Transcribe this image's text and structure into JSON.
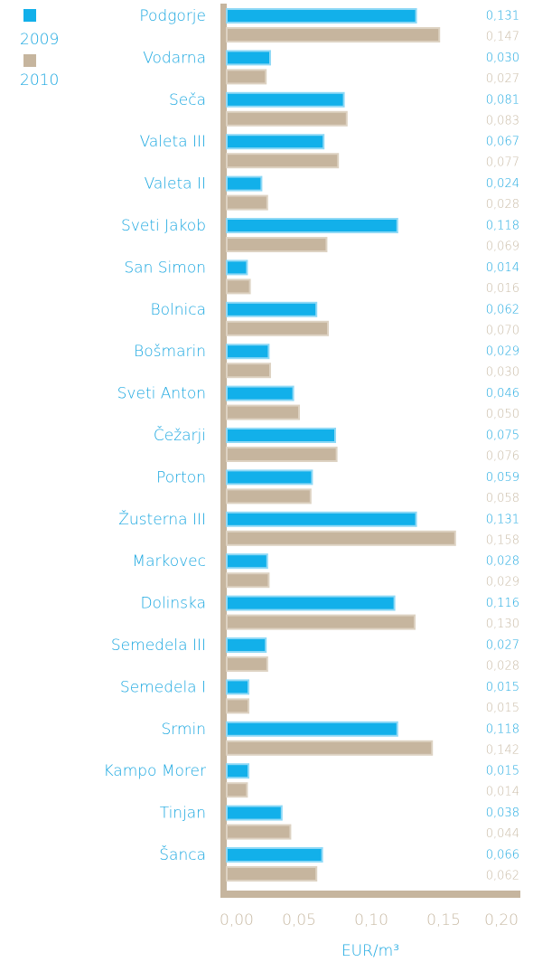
{
  "chart_data": {
    "type": "bar",
    "orientation": "horizontal",
    "categories": [
      "Podgorje",
      "Vodarna",
      "Seča",
      "Valeta III",
      "Valeta II",
      "Sveti Jakob",
      "San Simon",
      "Bolnica",
      "Bošmarin",
      "Sveti Anton",
      "Čežarji",
      "Porton",
      "Žusterna III",
      "Markovec",
      "Dolinska",
      "Semedela III",
      "Semedela I",
      "Srmin",
      "Kampo Morer",
      "Tinjan",
      "Šanca"
    ],
    "series": [
      {
        "name": "2009",
        "color": "#12b0ea",
        "values": [
          0.131,
          0.03,
          0.081,
          0.067,
          0.024,
          0.118,
          0.014,
          0.062,
          0.029,
          0.046,
          0.075,
          0.059,
          0.131,
          0.028,
          0.116,
          0.027,
          0.015,
          0.118,
          0.015,
          0.038,
          0.066
        ],
        "value_labels": [
          "0,131",
          "0,030",
          "0,081",
          "0,067",
          "0,024",
          "0,118",
          "0,014",
          "0,062",
          "0,029",
          "0,046",
          "0,075",
          "0,059",
          "0,131",
          "0,028",
          "0,116",
          "0,027",
          "0,015",
          "0,118",
          "0,015",
          "0,038",
          "0,066"
        ]
      },
      {
        "name": "2010",
        "color": "#c6b59e",
        "values": [
          0.147,
          0.027,
          0.083,
          0.077,
          0.028,
          0.069,
          0.016,
          0.07,
          0.03,
          0.05,
          0.076,
          0.058,
          0.158,
          0.029,
          0.13,
          0.028,
          0.015,
          0.142,
          0.014,
          0.044,
          0.062
        ],
        "value_labels": [
          "0,147",
          "0,027",
          "0,083",
          "0,077",
          "0,028",
          "0,069",
          "0,016",
          "0,070",
          "0,030",
          "0,050",
          "0,076",
          "0,058",
          "0,158",
          "0,029",
          "0,130",
          "0,028",
          "0,015",
          "0,142",
          "0,014",
          "0,044",
          "0,062"
        ]
      }
    ],
    "xlabel": "EUR/m³",
    "xlim": [
      0,
      0.2
    ],
    "xticks": [
      {
        "value": 0,
        "label": "0,00"
      },
      {
        "value": 0.05,
        "label": "0,05"
      },
      {
        "value": 0.1,
        "label": "0,10"
      },
      {
        "value": 0.15,
        "label": "0,15"
      },
      {
        "value": 0.2,
        "label": "0,20"
      }
    ],
    "legend": "top-left"
  }
}
